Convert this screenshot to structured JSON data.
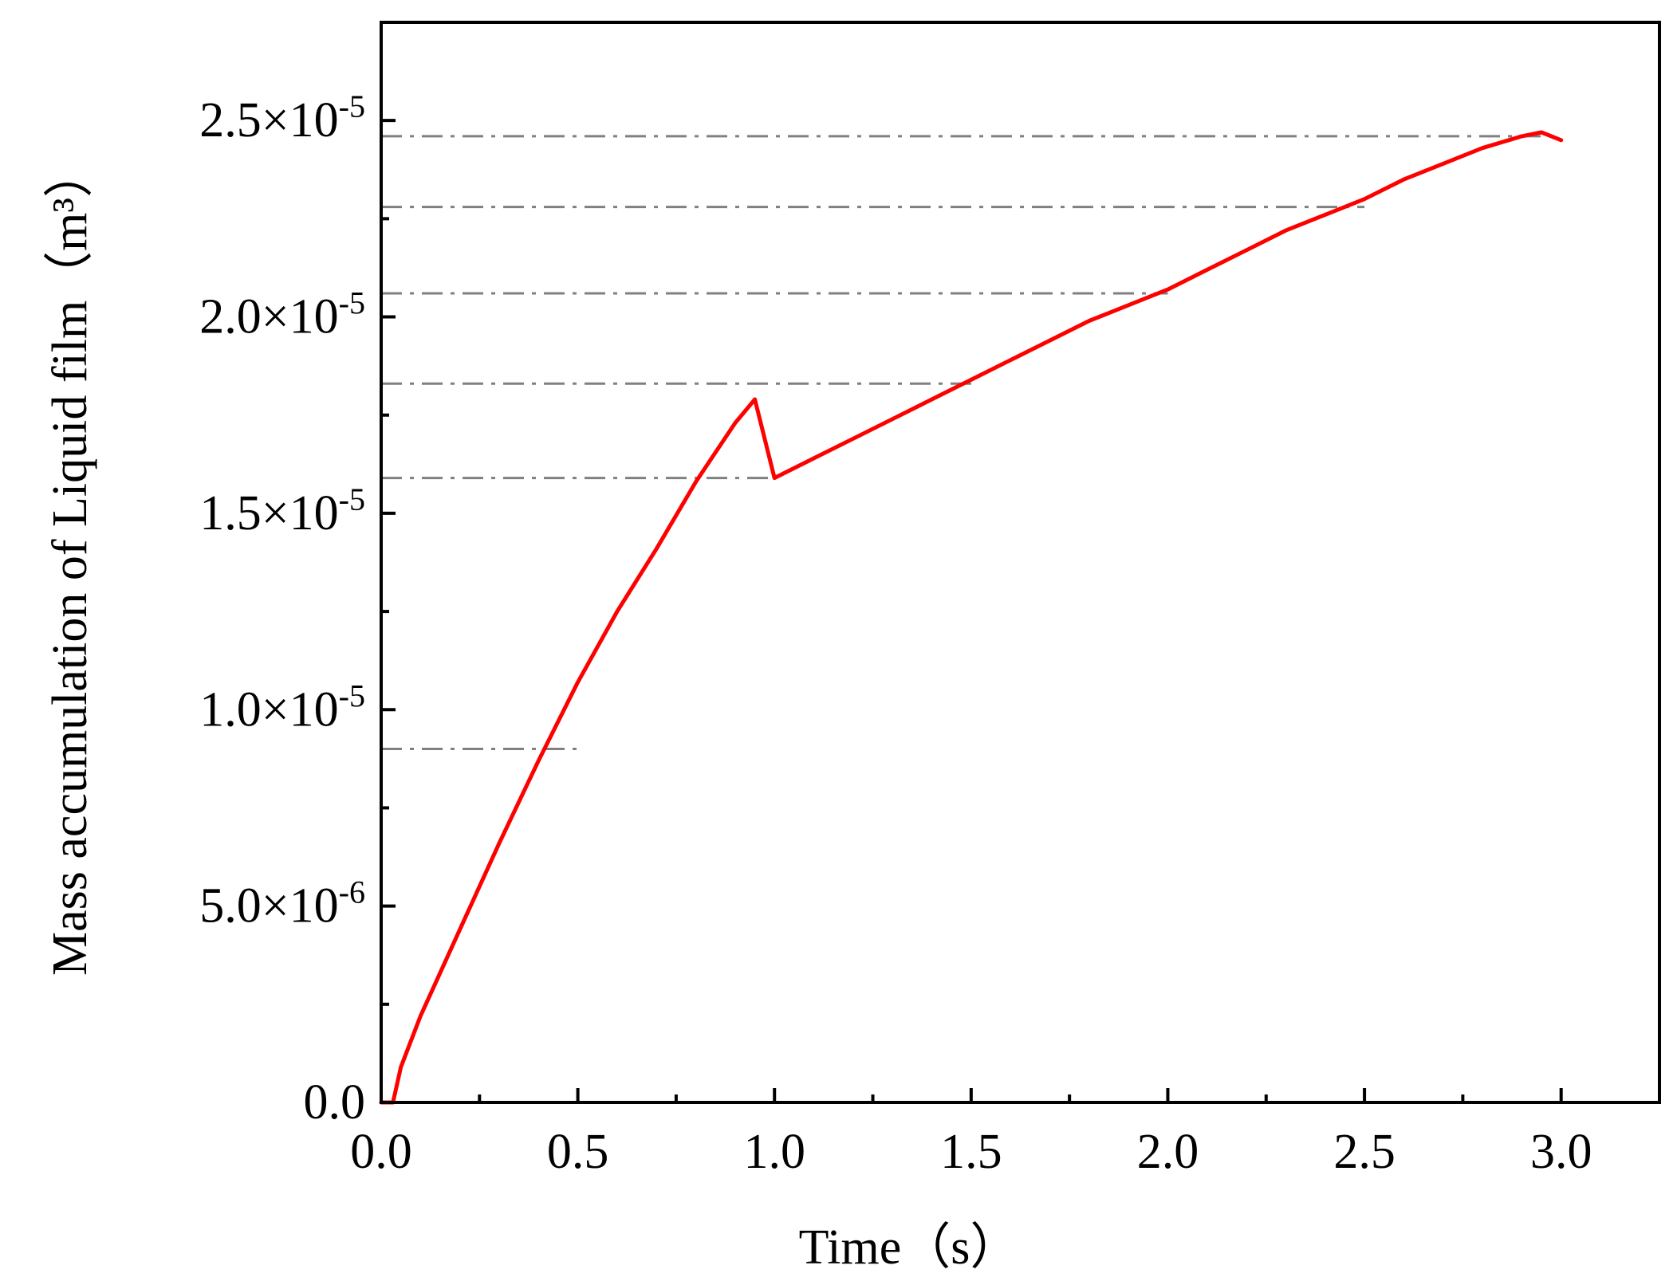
{
  "chart_data": {
    "type": "line",
    "title": "",
    "xlabel": "Time（s）",
    "ylabel": "Mass accumulation of Liquid film（m³）",
    "xlim": [
      0.0,
      3.25
    ],
    "ylim": [
      0.0,
      2.75e-05
    ],
    "xticks": [
      {
        "value": 0.0,
        "label": "0.0"
      },
      {
        "value": 0.5,
        "label": "0.5"
      },
      {
        "value": 1.0,
        "label": "1.0"
      },
      {
        "value": 1.5,
        "label": "1.5"
      },
      {
        "value": 2.0,
        "label": "2.0"
      },
      {
        "value": 2.5,
        "label": "2.5"
      },
      {
        "value": 3.0,
        "label": "3.0"
      }
    ],
    "xminor": [
      0.25,
      0.75,
      1.25,
      1.75,
      2.25,
      2.75
    ],
    "yticks": [
      {
        "value": 0.0,
        "mantissa": "0.0",
        "exponent": ""
      },
      {
        "value": 5e-06,
        "mantissa": "5.0×10",
        "exponent": "-6"
      },
      {
        "value": 1e-05,
        "mantissa": "1.0×10",
        "exponent": "-5"
      },
      {
        "value": 1.5e-05,
        "mantissa": "1.5×10",
        "exponent": "-5"
      },
      {
        "value": 2e-05,
        "mantissa": "2.0×10",
        "exponent": "-5"
      },
      {
        "value": 2.5e-05,
        "mantissa": "2.5×10",
        "exponent": "-5"
      }
    ],
    "yminor": [
      2.5e-06,
      7.5e-06,
      1.25e-05,
      1.75e-05,
      2.25e-05
    ],
    "series": [
      {
        "color": "#ff0000",
        "x": [
          0.0,
          0.03,
          0.05,
          0.1,
          0.2,
          0.3,
          0.4,
          0.5,
          0.6,
          0.7,
          0.8,
          0.9,
          0.95,
          1.0,
          1.1,
          1.2,
          1.3,
          1.4,
          1.5,
          1.6,
          1.7,
          1.8,
          1.9,
          2.0,
          2.1,
          2.2,
          2.3,
          2.4,
          2.5,
          2.6,
          2.7,
          2.8,
          2.9,
          2.95,
          3.0
        ],
        "y": [
          0.0,
          0.0,
          9e-07,
          2.2e-06,
          4.4e-06,
          6.6e-06,
          8.7e-06,
          1.07e-05,
          1.25e-05,
          1.41e-05,
          1.58e-05,
          1.73e-05,
          1.79e-05,
          1.59e-05,
          1.64e-05,
          1.69e-05,
          1.74e-05,
          1.79e-05,
          1.84e-05,
          1.89e-05,
          1.94e-05,
          1.99e-05,
          2.03e-05,
          2.07e-05,
          2.12e-05,
          2.17e-05,
          2.22e-05,
          2.26e-05,
          2.3e-05,
          2.35e-05,
          2.39e-05,
          2.43e-05,
          2.46e-05,
          2.47e-05,
          2.45e-05
        ]
      }
    ],
    "reference_lines": {
      "color": "#808080",
      "style": "dash-dot",
      "lines": [
        {
          "y": 9e-06,
          "x_end": 0.5
        },
        {
          "y": 1.59e-05,
          "x_end": 1.0
        },
        {
          "y": 1.83e-05,
          "x_end": 1.5
        },
        {
          "y": 2.06e-05,
          "x_end": 2.0
        },
        {
          "y": 2.28e-05,
          "x_end": 2.5
        },
        {
          "y": 2.46e-05,
          "x_end": 2.95
        }
      ]
    },
    "grid": false,
    "legend": "none"
  }
}
